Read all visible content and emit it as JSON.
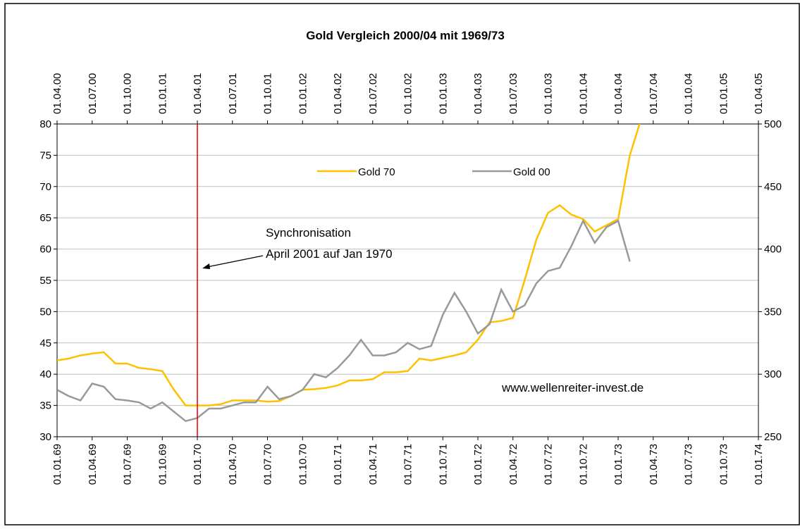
{
  "chart_data": {
    "type": "line",
    "title": "Gold Vergleich 2000/04 mit 1969/73",
    "xlim": [
      0,
      60
    ],
    "xticks": [
      {
        "value": 0,
        "label": "01.01.69"
      },
      {
        "value": 3,
        "label": "01.04.69"
      },
      {
        "value": 6,
        "label": "01.07.69"
      },
      {
        "value": 9,
        "label": "01.10.69"
      },
      {
        "value": 12,
        "label": "01.01.70"
      },
      {
        "value": 15,
        "label": "01.04.70"
      },
      {
        "value": 18,
        "label": "01.07.70"
      },
      {
        "value": 21,
        "label": "01.10.70"
      },
      {
        "value": 24,
        "label": "01.01.71"
      },
      {
        "value": 27,
        "label": "01.04.71"
      },
      {
        "value": 30,
        "label": "01.07.71"
      },
      {
        "value": 33,
        "label": "01.10.71"
      },
      {
        "value": 36,
        "label": "01.01.72"
      },
      {
        "value": 39,
        "label": "01.04.72"
      },
      {
        "value": 42,
        "label": "01.07.72"
      },
      {
        "value": 45,
        "label": "01.10.72"
      },
      {
        "value": 48,
        "label": "01.01.73"
      },
      {
        "value": 51,
        "label": "01.04.73"
      },
      {
        "value": 54,
        "label": "01.07.73"
      },
      {
        "value": 57,
        "label": "01.10.73"
      },
      {
        "value": 60,
        "label": "01.01.74"
      }
    ],
    "x2lim": [
      0,
      60
    ],
    "x2ticks": [
      {
        "value": 0,
        "label": "01.04.00"
      },
      {
        "value": 3,
        "label": "01.07.00"
      },
      {
        "value": 6,
        "label": "01.10.00"
      },
      {
        "value": 9,
        "label": "01.01.01"
      },
      {
        "value": 12,
        "label": "01.04.01"
      },
      {
        "value": 15,
        "label": "01.07.01"
      },
      {
        "value": 18,
        "label": "01.10.01"
      },
      {
        "value": 21,
        "label": "01.01.02"
      },
      {
        "value": 24,
        "label": "01.04.02"
      },
      {
        "value": 27,
        "label": "01.07.02"
      },
      {
        "value": 30,
        "label": "01.10.02"
      },
      {
        "value": 33,
        "label": "01.01.03"
      },
      {
        "value": 36,
        "label": "01.04.03"
      },
      {
        "value": 39,
        "label": "01.07.03"
      },
      {
        "value": 42,
        "label": "01.10.03"
      },
      {
        "value": 45,
        "label": "01.01.04"
      },
      {
        "value": 48,
        "label": "01.04.04"
      },
      {
        "value": 51,
        "label": "01.07.04"
      },
      {
        "value": 54,
        "label": "01.10.04"
      },
      {
        "value": 57,
        "label": "01.01.05"
      },
      {
        "value": 60,
        "label": "01.04.05"
      }
    ],
    "ylim": [
      30,
      80
    ],
    "yticks": [
      30,
      35,
      40,
      45,
      50,
      55,
      60,
      65,
      70,
      75,
      80
    ],
    "y2lim": [
      250,
      500
    ],
    "y2ticks": [
      250,
      300,
      350,
      400,
      450,
      500
    ],
    "grid": true,
    "series": [
      {
        "name": "Gold 70",
        "color": "#ffc000",
        "axis": "y",
        "x": [
          0,
          1,
          2,
          3,
          4,
          5,
          6,
          7,
          8,
          9,
          10,
          11,
          12,
          13,
          14,
          15,
          16,
          17,
          18,
          19,
          20,
          21,
          22,
          23,
          24,
          25,
          26,
          27,
          28,
          29,
          30,
          31,
          32,
          33,
          34,
          35,
          36,
          37,
          38,
          39,
          40,
          41,
          42,
          43,
          44,
          45,
          46,
          47,
          48,
          49,
          50
        ],
        "values": [
          42.2,
          42.5,
          43,
          43.3,
          43.5,
          41.7,
          41.7,
          41,
          40.8,
          40.5,
          37.5,
          35,
          35,
          35,
          35.2,
          35.8,
          35.8,
          35.8,
          35.6,
          35.7,
          36.5,
          37.5,
          37.6,
          37.8,
          38.2,
          39,
          39,
          39.2,
          40.3,
          40.3,
          40.5,
          42.5,
          42.2,
          42.6,
          43,
          43.5,
          45.5,
          48.3,
          48.5,
          49,
          55,
          61.5,
          65.8,
          67,
          65.5,
          64.8,
          62.8,
          63.8,
          64.8,
          75,
          81
        ]
      },
      {
        "name": "Gold 00",
        "color": "#999999",
        "axis": "y2",
        "xaxis": "x2",
        "x": [
          0,
          1,
          2,
          3,
          4,
          5,
          6,
          7,
          8,
          9,
          10,
          11,
          12,
          13,
          14,
          15,
          16,
          17,
          18,
          19,
          20,
          21,
          22,
          23,
          24,
          25,
          26,
          27,
          28,
          29,
          30,
          31,
          32,
          33,
          34,
          35,
          36,
          37,
          38,
          39,
          40,
          41,
          42,
          43,
          44,
          45,
          46,
          47,
          48,
          49
        ],
        "values": [
          287.5,
          282.5,
          279,
          292.5,
          290,
          280,
          279,
          277.5,
          272.5,
          277.5,
          270,
          262.5,
          265,
          272.5,
          272.5,
          275,
          277.5,
          277.5,
          290,
          280,
          282.5,
          287.5,
          300,
          297.5,
          305,
          315,
          327.5,
          315,
          315,
          317.5,
          325,
          320,
          322.5,
          347.5,
          365,
          350,
          332.5,
          340,
          367.5,
          350,
          355,
          372.5,
          382.5,
          385,
          402.5,
          422.5,
          405,
          417.5,
          422.5,
          390
        ]
      }
    ],
    "annotations": [
      {
        "text": "Synchronisation",
        "x": 12
      },
      {
        "text": "April 2001 auf Jan 1970"
      },
      {
        "text": "www.wellenreiter-invest.de"
      }
    ]
  }
}
